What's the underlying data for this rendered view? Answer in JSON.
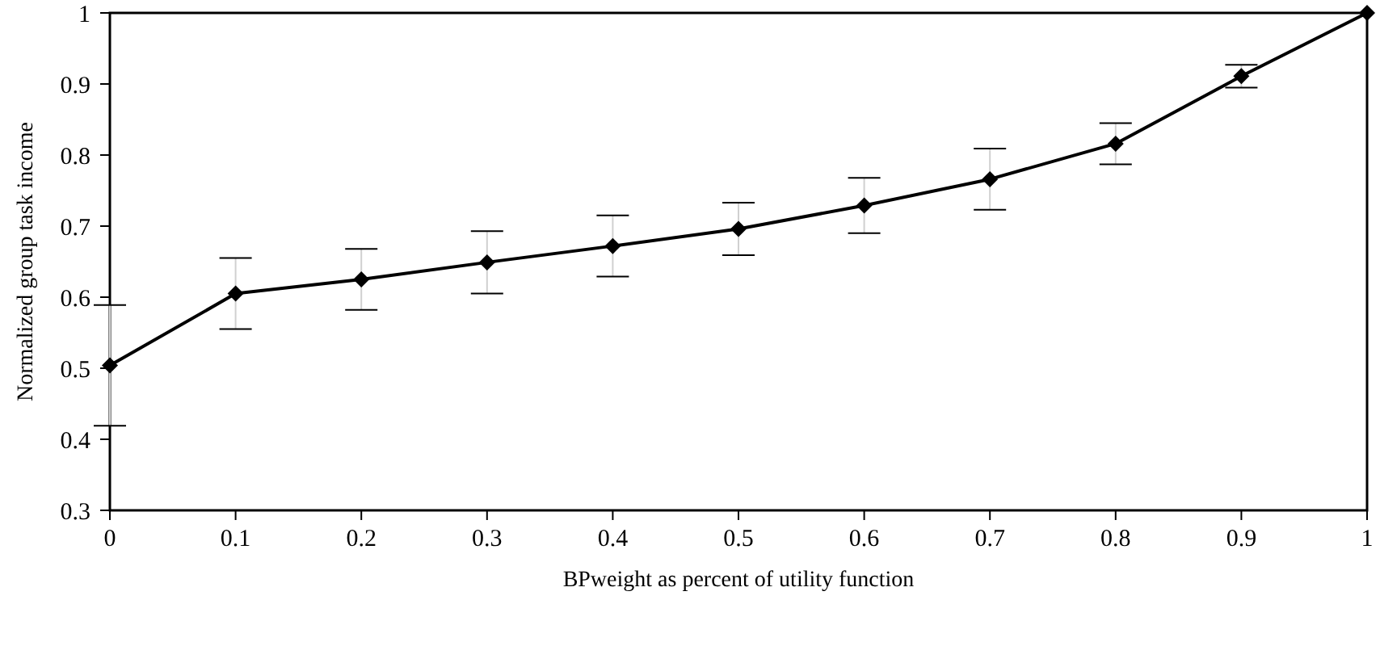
{
  "chart_data": {
    "type": "line",
    "xlabel": "BPweight as percent of utility function",
    "ylabel": "Normalized group task income",
    "x": [
      0,
      0.1,
      0.2,
      0.3,
      0.4,
      0.5,
      0.6,
      0.7,
      0.8,
      0.9,
      1
    ],
    "series": [
      {
        "color": "#000000",
        "values": [
          0.504,
          0.605,
          0.625,
          0.649,
          0.672,
          0.696,
          0.729,
          0.766,
          0.816,
          0.911,
          1.0
        ],
        "errors": [
          0.085,
          0.05,
          0.043,
          0.044,
          0.043,
          0.037,
          0.039,
          0.043,
          0.029,
          0.016,
          null
        ]
      }
    ],
    "xlim": [
      0,
      1
    ],
    "xticks": [
      0,
      0.1,
      0.2,
      0.3,
      0.4,
      0.5,
      0.6,
      0.7,
      0.8,
      0.9,
      1
    ],
    "ylim": [
      0.3,
      1
    ],
    "yticks": [
      0.3,
      0.4,
      0.5,
      0.6,
      0.7,
      0.8,
      0.9,
      1
    ],
    "marker": "diamond",
    "line_style": "solid",
    "grid": false
  }
}
